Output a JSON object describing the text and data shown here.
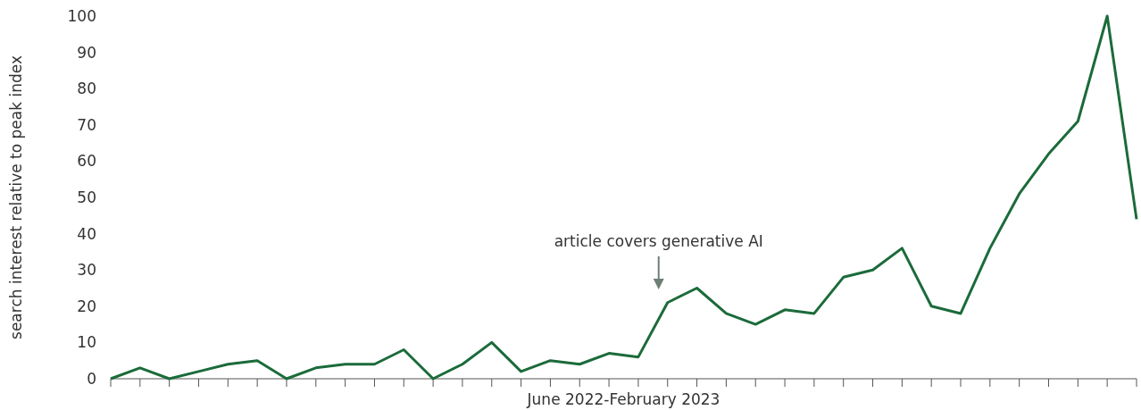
{
  "chart_data": {
    "type": "line",
    "xlabel": "June 2022-February 2023",
    "ylabel": "search interest relative to peak index",
    "categories": [
      null,
      null,
      null,
      null,
      null,
      null,
      null,
      null,
      null,
      null,
      null,
      null,
      null,
      null,
      null,
      null,
      null,
      null,
      null,
      null,
      null,
      null,
      null,
      null,
      null,
      null,
      null,
      null,
      null,
      null,
      null,
      null,
      null,
      null,
      null,
      null
    ],
    "series": [
      {
        "color": "#1b6b3a",
        "values": [
          0,
          3,
          0,
          2,
          4,
          5,
          0,
          3,
          4,
          4,
          8,
          0,
          4,
          10,
          2,
          5,
          4,
          7,
          6,
          21,
          25,
          18,
          15,
          19,
          18,
          28,
          30,
          36,
          20,
          18,
          36,
          51,
          62,
          71,
          100,
          44
        ]
      }
    ],
    "ylim": [
      0,
      100
    ],
    "yticks": [
      0,
      10,
      20,
      30,
      40,
      50,
      60,
      70,
      80,
      90,
      100
    ],
    "grid": false,
    "marker": "none",
    "line_style": "solid",
    "annotations": [
      "article covers generative AI"
    ]
  }
}
